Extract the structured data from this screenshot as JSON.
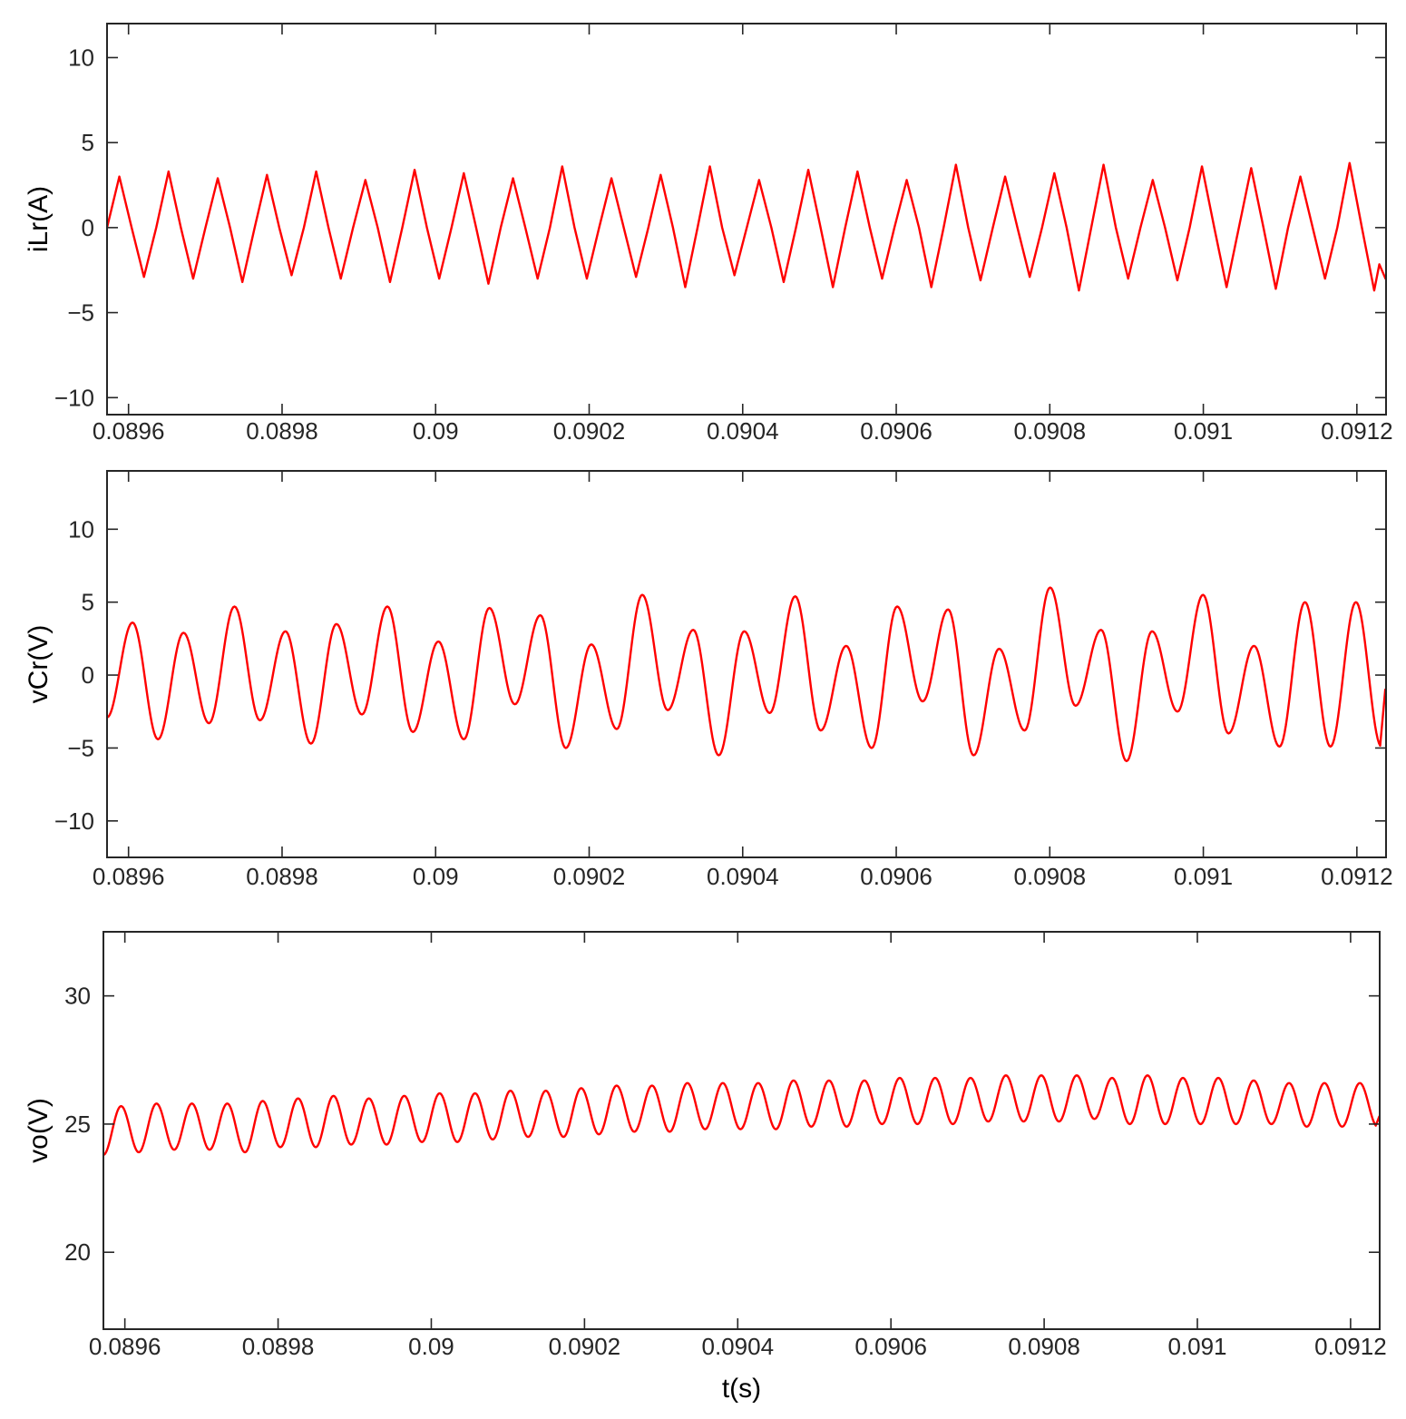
{
  "chart_data": [
    {
      "type": "line",
      "ylabel": "iLr(A)",
      "xlabel": "",
      "xlim": [
        0.089572,
        0.091238
      ],
      "ylim": [
        -11,
        12
      ],
      "yticks": [
        -10,
        -5,
        0,
        5,
        10
      ],
      "ytick_labels": [
        "−10",
        "−5",
        "0",
        "5",
        "10"
      ],
      "xticks": [
        0.0896,
        0.0898,
        0.09,
        0.0902,
        0.0904,
        0.0906,
        0.0908,
        0.091,
        0.0912
      ],
      "xtick_labels": [
        "0.0896",
        "0.0898",
        "0.09",
        "0.0902",
        "0.0904",
        "0.0906",
        "0.0908",
        "0.091",
        "0.0912"
      ],
      "grid": false,
      "series": [
        {
          "color": "#ff0000",
          "waveform": "triangular",
          "start_time": 0.089572,
          "period": 6.41e-05,
          "start_phase": 0.0,
          "offset": 0,
          "peaks": [
            3.0,
            3.3,
            2.9,
            3.1,
            3.3,
            2.8,
            3.4,
            3.2,
            2.9,
            3.6,
            2.9,
            3.1,
            3.6,
            2.8,
            3.4,
            3.3,
            2.8,
            3.7,
            3.0,
            3.2,
            3.7,
            2.8,
            3.6,
            3.5,
            3.0,
            3.8,
            3.1,
            3.0
          ],
          "troughs": [
            -2.9,
            -3.0,
            -3.2,
            -2.8,
            -3.0,
            -3.2,
            -3.0,
            -3.3,
            -3.0,
            -3.0,
            -2.9,
            -3.5,
            -2.8,
            -3.2,
            -3.5,
            -3.0,
            -3.5,
            -3.1,
            -2.9,
            -3.7,
            -3.0,
            -3.1,
            -3.5,
            -3.6,
            -3.0,
            -3.7,
            -3.1,
            -3.0
          ],
          "end_value": -3.0
        }
      ]
    },
    {
      "type": "line",
      "ylabel": "vCr(V)",
      "xlabel": "",
      "xlim": [
        0.089572,
        0.091238
      ],
      "ylim": [
        -12.5,
        14
      ],
      "yticks": [
        -10,
        -5,
        0,
        5,
        10
      ],
      "ytick_labels": [
        "−10",
        "−5",
        "0",
        "5",
        "10"
      ],
      "xticks": [
        0.0896,
        0.0898,
        0.09,
        0.0902,
        0.0904,
        0.0906,
        0.0908,
        0.091,
        0.0912
      ],
      "xtick_labels": [
        "0.0896",
        "0.0898",
        "0.09",
        "0.0902",
        "0.0904",
        "0.0906",
        "0.0908",
        "0.091",
        "0.0912"
      ],
      "grid": false,
      "series": [
        {
          "color": "#ff0000",
          "waveform": "sinusoidal",
          "start_time": 0.089572,
          "period": 6.64e-05,
          "start_phase": 0.75,
          "offset": 0,
          "peaks": [
            4.3,
            3.6,
            2.9,
            4.7,
            3.0,
            3.5,
            4.7,
            2.3,
            4.6,
            4.1,
            2.1,
            5.5,
            3.1,
            3.0,
            5.4,
            2.0,
            4.7,
            4.5,
            1.8,
            6.0,
            3.1,
            3.0,
            5.5,
            2.0,
            5.0
          ],
          "troughs": [
            -2.9,
            -4.4,
            -3.3,
            -3.1,
            -4.7,
            -2.7,
            -3.9,
            -4.4,
            -2.0,
            -5.0,
            -3.7,
            -2.4,
            -5.5,
            -2.6,
            -3.8,
            -5.0,
            -1.8,
            -5.5,
            -3.8,
            -2.1,
            -5.9,
            -2.5,
            -4.0,
            -4.9
          ],
          "end_value": -1.0
        }
      ]
    },
    {
      "type": "line",
      "ylabel": "vo(V)",
      "xlabel": "t(s)",
      "xlim": [
        0.089572,
        0.091238
      ],
      "ylim": [
        17,
        32.5
      ],
      "yticks": [
        20,
        25,
        30
      ],
      "ytick_labels": [
        "20",
        "25",
        "30"
      ],
      "xticks": [
        0.0896,
        0.0898,
        0.09,
        0.0902,
        0.0904,
        0.0906,
        0.0908,
        0.091,
        0.0912
      ],
      "xtick_labels": [
        "0.0896",
        "0.0898",
        "0.09",
        "0.0902",
        "0.0904",
        "0.0906",
        "0.0908",
        "0.091",
        "0.0912"
      ],
      "grid": false,
      "series": [
        {
          "color": "#ff0000",
          "waveform": "sinusoidal",
          "start_time": 0.089572,
          "period": 4.62e-05,
          "start_phase": 0.75,
          "offset": 0,
          "peaks": [
            25.6,
            25.7,
            25.8,
            25.8,
            25.8,
            25.9,
            26.0,
            26.1,
            26.0,
            26.1,
            26.2,
            26.2,
            26.3,
            26.3,
            26.4,
            26.5,
            26.5,
            26.6,
            26.6,
            26.6,
            26.7,
            26.7,
            26.7,
            26.8,
            26.8,
            26.8,
            26.9,
            26.9,
            26.9,
            26.8,
            26.9,
            26.8,
            26.8,
            26.7,
            26.6,
            26.6
          ],
          "troughs": [
            23.8,
            23.9,
            24.0,
            24.0,
            23.9,
            24.1,
            24.1,
            24.2,
            24.2,
            24.3,
            24.3,
            24.4,
            24.5,
            24.5,
            24.6,
            24.7,
            24.7,
            24.8,
            24.8,
            24.8,
            24.9,
            24.9,
            25.0,
            25.0,
            25.0,
            25.1,
            25.1,
            25.1,
            25.2,
            25.0,
            25.0,
            25.0,
            25.0,
            25.0,
            24.9,
            24.9
          ],
          "end_value": 25.3
        }
      ]
    }
  ]
}
